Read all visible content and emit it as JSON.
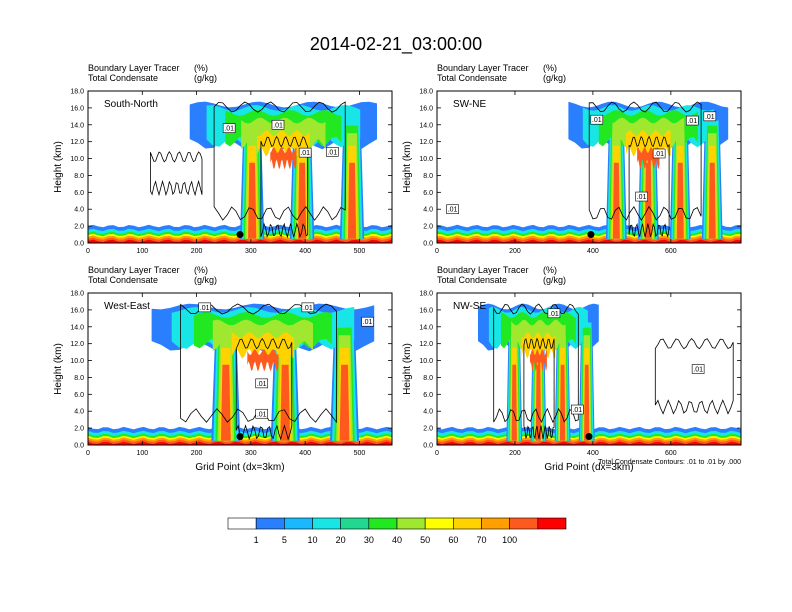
{
  "chart_data": {
    "type": "heatmap",
    "title": "2014-02-21_03:00:00",
    "colors": {
      "background": "#ffffff",
      "contour": "#000000",
      "fill_levels": [
        "#ffffff",
        "#2a7fff",
        "#1ab8ff",
        "#18e6e6",
        "#20d890",
        "#22e822",
        "#a0e830",
        "#ffff00",
        "#ffd200",
        "#ffa000",
        "#ff5a1e",
        "#ff0000"
      ]
    },
    "panels": [
      {
        "name": "South-North",
        "header_left": [
          "Boundary Layer Tracer",
          "Total Condensate"
        ],
        "header_units": [
          "(%)",
          "(g/kg)"
        ],
        "ylabel": "Height (km)",
        "xlabel": "",
        "xlim": [
          0,
          560
        ],
        "ylim": [
          0,
          18
        ],
        "xticks": [
          "0",
          "100",
          "200",
          "300",
          "400",
          "500"
        ],
        "xtick_values": [
          0,
          100,
          200,
          300,
          400,
          500
        ],
        "yticks": [
          "0.0",
          "2.0",
          "4.0",
          "6.0",
          "8.0",
          "10.0",
          "12.0",
          "14.0",
          "16.0",
          "18.0"
        ],
        "contour_labels": [
          {
            "text": ".01",
            "x": 260,
            "y": 13.6
          },
          {
            "text": ".01",
            "x": 350,
            "y": 14.0
          },
          {
            "text": ".01",
            "x": 400,
            "y": 10.7
          },
          {
            "text": ".01",
            "x": 450,
            "y": 10.8
          }
        ],
        "site_marker": {
          "x": 280,
          "y": 1.0
        },
        "cloud_extent": [
          215,
          560
        ]
      },
      {
        "name": "SW-NE",
        "header_left": [
          "Boundary Layer Tracer",
          "Total Condensate"
        ],
        "header_units": [
          "(%)",
          "(g/kg)"
        ],
        "ylabel": "Height (km)",
        "xlabel": "",
        "xlim": [
          0,
          780
        ],
        "ylim": [
          0,
          18
        ],
        "xticks": [
          "0",
          "200",
          "400",
          "600"
        ],
        "xtick_values": [
          0,
          200,
          400,
          600
        ],
        "yticks": [
          "0.0",
          "2.0",
          "4.0",
          "6.0",
          "8.0",
          "10.0",
          "12.0",
          "14.0",
          "16.0",
          "18.0"
        ],
        "contour_labels": [
          {
            "text": ".01",
            "x": 40,
            "y": 4.0
          },
          {
            "text": ".01",
            "x": 700,
            "y": 15.0
          },
          {
            "text": ".01",
            "x": 655,
            "y": 14.5
          },
          {
            "text": ".01",
            "x": 570,
            "y": 10.6
          },
          {
            "text": ".01",
            "x": 525,
            "y": 5.5
          },
          {
            "text": ".01",
            "x": 410,
            "y": 14.6
          }
        ],
        "site_marker": {
          "x": 395,
          "y": 1.0
        },
        "cloud_extent": [
          370,
          780
        ]
      },
      {
        "name": "West-East",
        "header_left": [
          "Boundary Layer Tracer",
          "Total Condensate"
        ],
        "header_units": [
          "(%)",
          "(g/kg)"
        ],
        "ylabel": "Height (km)",
        "xlabel": "Grid Point (dx=3km)",
        "xlim": [
          0,
          560
        ],
        "ylim": [
          0,
          18
        ],
        "xticks": [
          "0",
          "100",
          "200",
          "300",
          "400",
          "500"
        ],
        "xtick_values": [
          0,
          100,
          200,
          300,
          400,
          500
        ],
        "yticks": [
          "0.0",
          "2.0",
          "4.0",
          "6.0",
          "8.0",
          "10.0",
          "12.0",
          "14.0",
          "16.0",
          "18.0"
        ],
        "contour_labels": [
          {
            "text": ".01",
            "x": 215,
            "y": 16.3
          },
          {
            "text": ".01",
            "x": 405,
            "y": 16.3
          },
          {
            "text": ".01",
            "x": 515,
            "y": 14.6
          },
          {
            "text": ".01",
            "x": 320,
            "y": 7.3
          },
          {
            "text": ".01",
            "x": 320,
            "y": 3.7
          }
        ],
        "site_marker": {
          "x": 280,
          "y": 1.0
        },
        "cloud_extent": [
          150,
          560
        ]
      },
      {
        "name": "NW-SE",
        "header_left": [
          "Boundary Layer Tracer",
          "Total Condensate"
        ],
        "header_units": [
          "(%)",
          "(g/kg)"
        ],
        "ylabel": "Height (km)",
        "xlabel": "Grid Point (dx=3km)",
        "xlim": [
          0,
          780
        ],
        "ylim": [
          0,
          18
        ],
        "xticks": [
          "0",
          "200",
          "400",
          "600"
        ],
        "xtick_values": [
          0,
          200,
          400,
          600
        ],
        "yticks": [
          "0.0",
          "2.0",
          "4.0",
          "6.0",
          "8.0",
          "10.0",
          "12.0",
          "14.0",
          "16.0",
          "18.0"
        ],
        "contour_labels": [
          {
            "text": ".01",
            "x": 300,
            "y": 15.6
          },
          {
            "text": ".01",
            "x": 670,
            "y": 9.0
          },
          {
            "text": ".01",
            "x": 360,
            "y": 4.2
          }
        ],
        "site_marker": {
          "x": 390,
          "y": 1.0
        },
        "cloud_extent": [
          130,
          440
        ],
        "note": "Total Condensate Contours: .01 to .01 by .000"
      }
    ],
    "colorbar": {
      "labels": [
        "1",
        "5",
        "10",
        "20",
        "30",
        "40",
        "50",
        "60",
        "70",
        "100"
      ],
      "colors": [
        "#ffffff",
        "#2a7fff",
        "#1ab8ff",
        "#18e6e6",
        "#20d890",
        "#22e822",
        "#a0e830",
        "#ffff00",
        "#ffd200",
        "#ffa000",
        "#ff5a1e",
        "#ff0000"
      ]
    },
    "legend_position": "bottom"
  }
}
